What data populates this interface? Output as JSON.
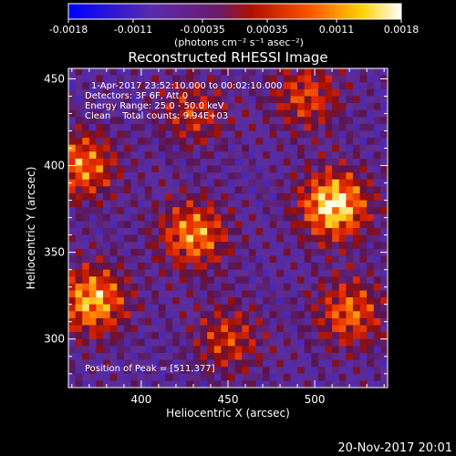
{
  "colorbar": {
    "ticks": [
      "-0.0018",
      "-0.0011",
      "-0.00035",
      "0.00035",
      "0.0011",
      "0.0018"
    ],
    "tick_values": [
      -0.0018,
      -0.0011,
      -0.00035,
      0.00035,
      0.0011,
      0.0018
    ],
    "range": [
      -0.0018,
      0.0018
    ],
    "units_label": "(photons cm⁻² s⁻¹ asec⁻²)"
  },
  "chart_data": {
    "type": "heatmap",
    "title": "Reconstructed RHESSI Image",
    "xlabel": "Heliocentric X (arcsec)",
    "ylabel": "Heliocentric Y (arcsec)",
    "xlim": [
      358,
      542
    ],
    "ylim": [
      272,
      456
    ],
    "x_ticks": [
      400,
      450,
      500
    ],
    "y_ticks": [
      300,
      350,
      400,
      450
    ],
    "colormap": "blue-purple-red-yellow-white",
    "value_range": [
      -0.0018,
      0.0018
    ],
    "peak": [
      511,
      377
    ],
    "sources": [
      {
        "x": 511,
        "y": 377,
        "amplitude": 1.0
      },
      {
        "x": 430,
        "y": 360,
        "amplitude": 0.75
      },
      {
        "x": 372,
        "y": 322,
        "amplitude": 0.85
      },
      {
        "x": 366,
        "y": 400,
        "amplitude": 0.7
      },
      {
        "x": 520,
        "y": 315,
        "amplitude": 0.65
      },
      {
        "x": 495,
        "y": 440,
        "amplitude": 0.55
      },
      {
        "x": 450,
        "y": 300,
        "amplitude": 0.5
      },
      {
        "x": 430,
        "y": 430,
        "amplitude": 0.45
      }
    ],
    "annotations": [
      "1-Apr-2017 23:52:10.000 to 00:02:10.000",
      "Detectors: 3F 6F, Att 0",
      "Energy Range: 25.0 - 50.0 keV",
      "Clean    Total counts: 9.94E+03",
      "Position of Peak = [511,377]"
    ]
  },
  "footer": {
    "timestamp": "20-Nov-2017 20:01"
  }
}
